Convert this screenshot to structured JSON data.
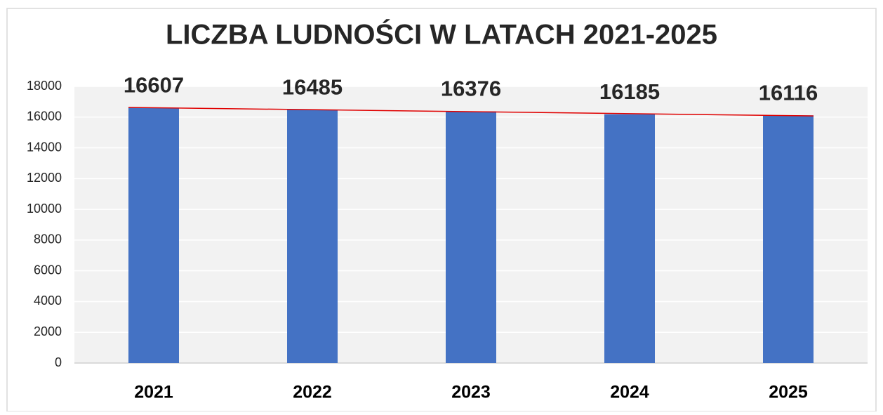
{
  "chart_data": {
    "type": "bar",
    "title": "LICZBA LUDNOŚCI W LATACH 2021-2025",
    "categories": [
      "2021",
      "2022",
      "2023",
      "2024",
      "2025"
    ],
    "values": [
      16607,
      16485,
      16376,
      16185,
      16116
    ],
    "color": "#4472c4",
    "ylim": [
      0,
      18000
    ],
    "yticks": [
      0,
      2000,
      4000,
      6000,
      8000,
      10000,
      12000,
      14000,
      16000,
      18000
    ],
    "grid": true,
    "data_labels": true,
    "trendline": {
      "type": "linear",
      "color": "#e00000"
    }
  }
}
